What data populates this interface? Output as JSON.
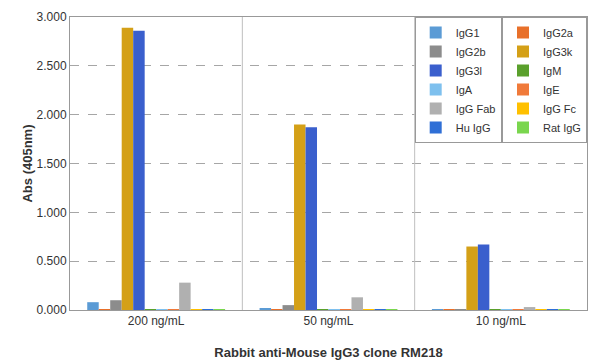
{
  "chart_data": {
    "type": "bar",
    "x_label": "Rabbit anti-Mouse IgG3 clone RM218",
    "y_label": "Abs (405nm)",
    "categories": [
      "200 ng/mL",
      "50 ng/mL",
      "10 ng/mL"
    ],
    "series": [
      {
        "name": "IgG1",
        "color": "#5b9bd5",
        "values": [
          0.08,
          0.02,
          0.01
        ]
      },
      {
        "name": "IgG2a",
        "color": "#e8702a",
        "values": [
          0.01,
          0.01,
          0.01
        ]
      },
      {
        "name": "IgG2b",
        "color": "#8c8c8c",
        "values": [
          0.1,
          0.05,
          0.01
        ]
      },
      {
        "name": "IgG3k",
        "color": "#d4a017",
        "values": [
          2.89,
          1.9,
          0.65
        ]
      },
      {
        "name": "IgG3l",
        "color": "#3a5fcd",
        "values": [
          2.86,
          1.87,
          0.67
        ]
      },
      {
        "name": "IgM",
        "color": "#5aa02c",
        "values": [
          0.01,
          0.01,
          0.01
        ]
      },
      {
        "name": "IgA",
        "color": "#7ec0ee",
        "values": [
          0.01,
          0.01,
          0.01
        ]
      },
      {
        "name": "IgE",
        "color": "#f07a3a",
        "values": [
          0.01,
          0.01,
          0.01
        ]
      },
      {
        "name": "IgG Fab",
        "color": "#b0b0b0",
        "values": [
          0.28,
          0.13,
          0.03
        ]
      },
      {
        "name": "IgG Fc",
        "color": "#ffc000",
        "values": [
          0.01,
          0.01,
          0.01
        ]
      },
      {
        "name": "Hu IgG",
        "color": "#2f6fd6",
        "values": [
          0.01,
          0.01,
          0.01
        ]
      },
      {
        "name": "Rat IgG",
        "color": "#7ad64e",
        "values": [
          0.01,
          0.01,
          0.01
        ]
      }
    ],
    "ylim": [
      0,
      3
    ],
    "yticks": [
      {
        "value": 0,
        "label": "0.000"
      },
      {
        "value": 0.5,
        "label": "0.500"
      },
      {
        "value": 1,
        "label": "1.000"
      },
      {
        "value": 1.5,
        "label": "1.500"
      },
      {
        "value": 2,
        "label": "2.000"
      },
      {
        "value": 2.5,
        "label": "2.500"
      },
      {
        "value": 3,
        "label": "3.000"
      }
    ],
    "grid": true,
    "legend": "top right"
  }
}
